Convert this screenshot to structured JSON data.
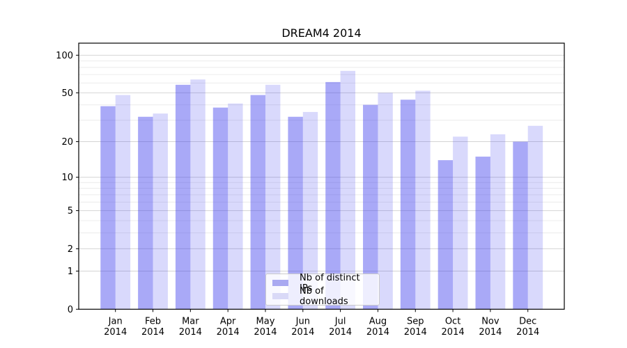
{
  "chart_data": {
    "type": "bar",
    "title": "DREAM4 2014",
    "categories": [
      "Jan",
      "Feb",
      "Mar",
      "Apr",
      "May",
      "Jun",
      "Jul",
      "Aug",
      "Sep",
      "Oct",
      "Nov",
      "Dec"
    ],
    "year_label": "2014",
    "series": [
      {
        "name": "Nb of distinct IPs",
        "color": "#a9a9f1",
        "fill_rgba": "rgba(64,64,238,0.45)",
        "values": [
          39,
          32,
          58,
          38,
          48,
          32,
          61,
          40,
          44,
          14,
          15,
          20
        ]
      },
      {
        "name": "Nb of downloads",
        "color": "#d9d9f7",
        "fill_rgba": "rgba(64,64,238,0.20)",
        "values": [
          48,
          34,
          64,
          41,
          58,
          35,
          75,
          50,
          52,
          22,
          23,
          27
        ]
      }
    ],
    "xlabel": "",
    "ylabel": "",
    "yscale": "log1p",
    "ylim": [
      0,
      125
    ],
    "yticks": [
      100,
      50,
      20,
      10,
      5,
      2,
      1,
      0
    ],
    "ytick_labels": [
      "100",
      "50",
      "20",
      "10",
      "5",
      "2",
      "1",
      "0"
    ],
    "minor_yticks": [
      90,
      80,
      70,
      60,
      40,
      30,
      9,
      8,
      7,
      6,
      4,
      3
    ],
    "grid": true,
    "legend_position": "lower center",
    "colors": {
      "major_gridline": "#d4d4d4",
      "minor_gridline": "#ececec",
      "axis": "#000000",
      "background": "#ffffff"
    }
  }
}
